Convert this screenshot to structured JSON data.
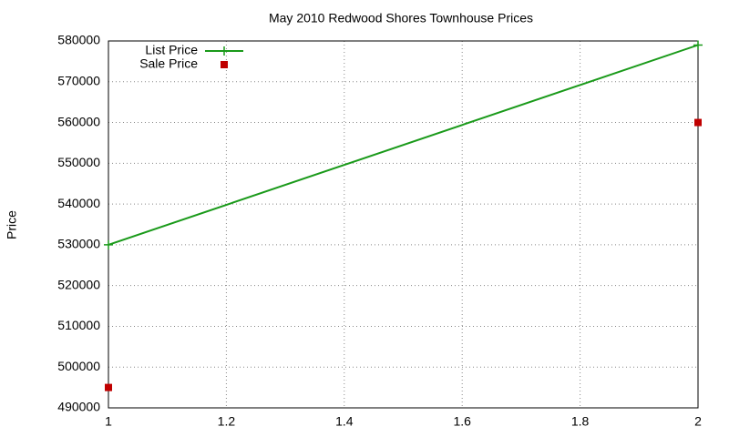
{
  "chart_data": {
    "type": "line",
    "title": "May 2010 Redwood Shores Townhouse Prices",
    "y_label": "Price",
    "x": [
      1,
      2
    ],
    "series": [
      {
        "name": "List Price",
        "color": "#1a9a1a",
        "style": "linespoints",
        "values": [
          530000,
          579000
        ]
      },
      {
        "name": "Sale Price",
        "color": "#c00000",
        "style": "points",
        "values": [
          495000,
          560000
        ]
      }
    ],
    "xlim": [
      1,
      2
    ],
    "xticks": [
      1,
      1.2,
      1.4,
      1.6,
      1.8,
      2
    ],
    "ylim": [
      490000,
      580000
    ],
    "yticks": [
      490000,
      500000,
      510000,
      520000,
      530000,
      540000,
      550000,
      560000,
      570000,
      580000
    ],
    "grid": true,
    "legend": "top-left"
  }
}
